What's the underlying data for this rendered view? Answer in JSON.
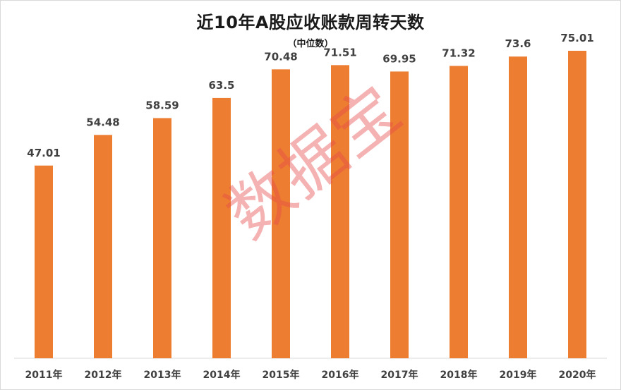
{
  "chart_data": {
    "type": "bar",
    "title": "近10年A股应收账款周转天数",
    "subtitle": "（中位数）",
    "categories": [
      "2011年",
      "2012年",
      "2013年",
      "2014年",
      "2015年",
      "2016年",
      "2017年",
      "2018年",
      "2019年",
      "2020年"
    ],
    "values": [
      47.01,
      54.48,
      58.59,
      63.5,
      70.48,
      71.51,
      69.95,
      71.32,
      73.6,
      75.01
    ],
    "value_labels": [
      "47.01",
      "54.48",
      "58.59",
      "63.5",
      "70.48",
      "71.51",
      "69.95",
      "71.32",
      "73.6",
      "75.01"
    ],
    "ylim": [
      0,
      80
    ],
    "grid": false,
    "bar_color": "#ed7d31"
  },
  "watermark": "数据宝"
}
